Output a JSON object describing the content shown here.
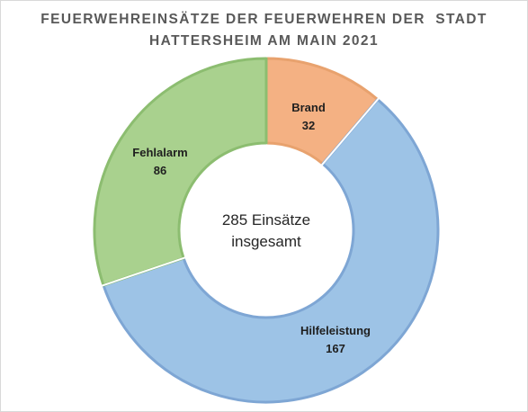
{
  "chart_data": {
    "type": "pie",
    "variant": "donut",
    "title_lines": [
      "FEUERWEHREINSÄTZE DER FEUERWEHREN DER  STADT",
      "HATTERSHEIM AM MAIN 2021"
    ],
    "center_text": [
      "285 Einsätze",
      "insgesamt"
    ],
    "categories": [
      "Brand",
      "Hilfeleistung",
      "Fehlalarm"
    ],
    "values": [
      32,
      167,
      86
    ],
    "colors": [
      "#f4b183",
      "#9dc3e6",
      "#a9d18e"
    ],
    "border_colors": [
      "#e8a26e",
      "#7ea6d4",
      "#8cbd70"
    ],
    "legend": "none"
  }
}
